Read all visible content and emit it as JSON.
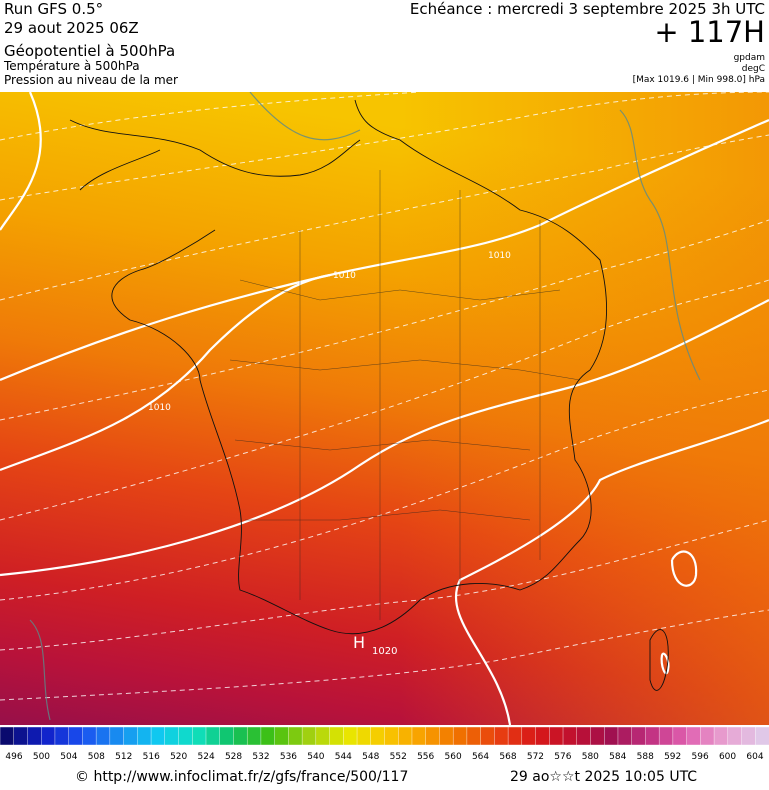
{
  "header": {
    "run": "Run GFS 0.5°",
    "date": "29 aout 2025 06Z",
    "line1": "Géopotentiel à 500hPa",
    "line2": "Température à 500hPa",
    "line3": "Pression au niveau de la mer",
    "echeance": "Echéance : mercredi 3 septembre 2025 3h UTC",
    "lead": "+ 117H",
    "unit1": "gpdam",
    "unit2": "degC",
    "range": "[Max 1019.6 | Min 998.0] hPa"
  },
  "map": {
    "labels": [
      "1010",
      "1010",
      "1010",
      "H",
      "1020"
    ]
  },
  "colorbar": {
    "labels": [
      496,
      500,
      504,
      508,
      512,
      516,
      520,
      524,
      528,
      532,
      536,
      540,
      544,
      548,
      552,
      556,
      560,
      564,
      568,
      572,
      576,
      580,
      584,
      588,
      592,
      596,
      600,
      604
    ]
  },
  "footer": {
    "url": "© http://www.infoclimat.fr/z/gfs/france/500/117",
    "time": "29 ao☆☆t 2025 10:05 UTC"
  }
}
